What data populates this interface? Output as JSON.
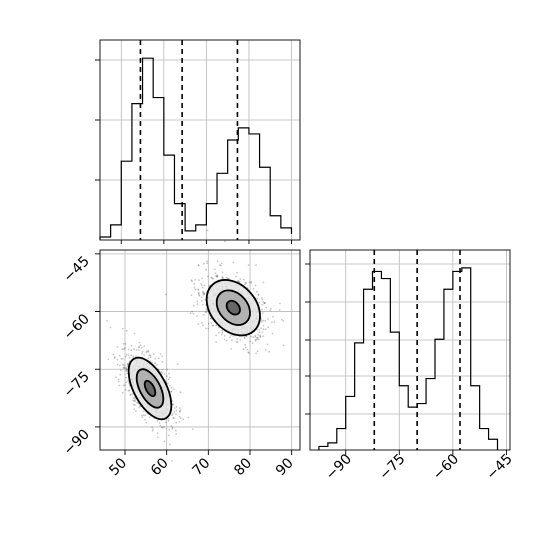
{
  "chart_data": [
    {
      "type": "histogram",
      "panel": "top-left",
      "bin_edges": [
        45,
        47.5,
        50,
        52.5,
        55,
        57.5,
        60,
        62.5,
        65,
        67.5,
        70,
        72.5,
        75,
        77.5,
        80,
        82.5,
        85,
        87.5,
        90
      ],
      "counts": [
        1,
        5,
        26,
        45,
        60,
        47,
        28,
        12,
        3,
        5,
        12,
        22,
        33,
        37,
        35,
        24,
        8,
        4,
        2
      ],
      "quantiles": [
        54.5,
        64.3,
        77.3
      ],
      "xlim": [
        45,
        92
      ],
      "ylim": [
        0,
        66
      ],
      "grid": true,
      "tick_labels": false
    },
    {
      "type": "scatter",
      "panel": "bottom-left",
      "clusters": [
        {
          "center": [
            76,
            -59
          ],
          "sd": [
            4,
            4.5
          ],
          "corr": 0.3,
          "n": 800
        },
        {
          "center": [
            56,
            -80
          ],
          "sd": [
            3.2,
            5
          ],
          "corr": 0.55,
          "n": 800
        }
      ],
      "contours": [
        {
          "cluster": 0,
          "radii": [
            0.4,
            1.0,
            1.6
          ]
        },
        {
          "cluster": 1,
          "radii": [
            0.4,
            1.0,
            1.6
          ]
        }
      ],
      "xlim": [
        44,
        92
      ],
      "ylim": [
        -96,
        -44
      ],
      "x_ticks": [
        50,
        60,
        70,
        80,
        90
      ],
      "y_ticks": [
        -45,
        -60,
        -75,
        -90
      ],
      "x_tick_labels": [
        "50",
        "60",
        "70",
        "80",
        "90"
      ],
      "y_tick_labels": [
        "−45",
        "−60",
        "−75",
        "−90"
      ],
      "grid": true
    },
    {
      "type": "histogram",
      "panel": "bottom-right",
      "bin_edges": [
        -97.5,
        -95,
        -92.5,
        -90,
        -87.5,
        -85,
        -82.5,
        -80,
        -77.5,
        -75,
        -72.5,
        -70,
        -67.5,
        -65,
        -62.5,
        -60,
        -57.5,
        -55,
        -52.5,
        -50,
        -47.5
      ],
      "counts": [
        1,
        2,
        6,
        15,
        30,
        45,
        50,
        48,
        33,
        18,
        12,
        13,
        20,
        31,
        45,
        50,
        51,
        18,
        6,
        3
      ],
      "quantiles": [
        -82,
        -70,
        -58
      ],
      "xlim": [
        -100,
        -44
      ],
      "ylim": [
        0,
        56
      ],
      "x_ticks": [
        -90,
        -75,
        -60,
        -45
      ],
      "x_tick_labels": [
        "−90",
        "−75",
        "−60",
        "−45"
      ],
      "grid": true
    }
  ]
}
